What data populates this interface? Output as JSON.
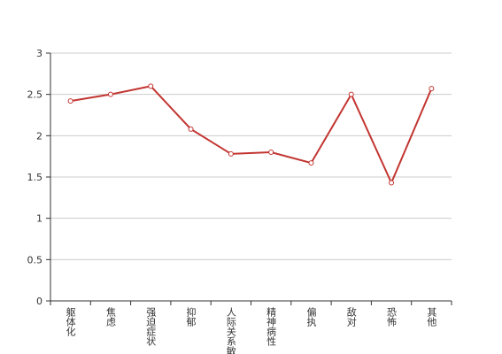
{
  "chart_data": {
    "type": "line",
    "categories": [
      "躯体化",
      "焦虑",
      "强迫症状",
      "抑郁",
      "人际关系敏感",
      "精神病性",
      "偏执",
      "敌对",
      "恐怖",
      "其他"
    ],
    "series": [
      {
        "color": "#c23531",
        "values": [
          2.42,
          2.5,
          2.6,
          2.08,
          1.78,
          1.8,
          1.67,
          2.5,
          1.43,
          2.57
        ]
      }
    ],
    "ylim": [
      0,
      3
    ],
    "yticks": [
      0,
      0.5,
      1,
      1.5,
      2,
      2.5,
      3
    ],
    "grid": true
  }
}
